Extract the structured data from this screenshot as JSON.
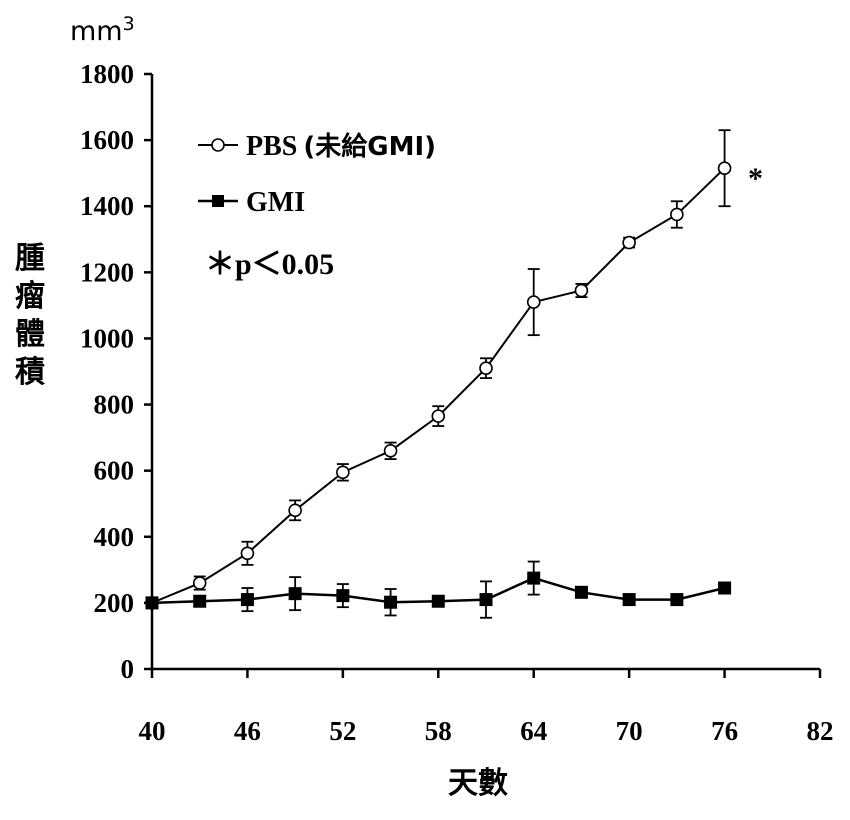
{
  "chart_data": {
    "type": "line",
    "unit_label": "mm",
    "unit_exponent": "3",
    "ylabel_chars": [
      "腫",
      "瘤",
      "體",
      "積"
    ],
    "xlabel": "天數",
    "xlim": [
      40,
      82
    ],
    "ylim": [
      0,
      1800
    ],
    "x_ticks": [
      40,
      46,
      52,
      58,
      64,
      70,
      76,
      82
    ],
    "y_ticks": [
      0,
      200,
      400,
      600,
      800,
      1000,
      1200,
      1400,
      1600,
      1800
    ],
    "series": [
      {
        "name": "PBS",
        "name_suffix": "(未給GMI)",
        "marker": "open-circle",
        "x": [
          40,
          43,
          46,
          49,
          52,
          55,
          58,
          61,
          64,
          67,
          70,
          73,
          76
        ],
        "values": [
          200,
          260,
          350,
          480,
          595,
          660,
          765,
          910,
          1110,
          1145,
          1290,
          1375,
          1515
        ],
        "errors": [
          10,
          20,
          35,
          30,
          25,
          25,
          30,
          30,
          100,
          20,
          15,
          40,
          115
        ]
      },
      {
        "name": "GMI",
        "marker": "filled-square",
        "x": [
          40,
          43,
          46,
          49,
          52,
          55,
          58,
          61,
          64,
          67,
          70,
          73,
          76
        ],
        "values": [
          200,
          205,
          210,
          228,
          222,
          202,
          205,
          210,
          275,
          232,
          210,
          210,
          245
        ],
        "errors": [
          10,
          15,
          35,
          50,
          35,
          40,
          15,
          55,
          50,
          15,
          15,
          15,
          15
        ]
      }
    ],
    "annotations": {
      "significance_marker": "*",
      "p_value_text": "＊p＜0.05"
    }
  }
}
